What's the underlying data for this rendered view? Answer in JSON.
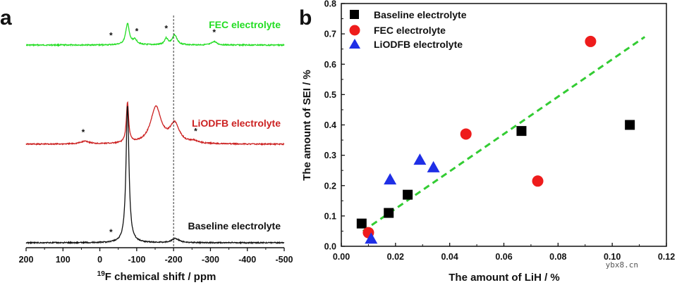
{
  "chart_data": [
    {
      "panel": "a",
      "type": "line",
      "xlabel": "19F chemical shift / ppm",
      "xlabel_sup": "19",
      "xlabel_rest": "F chemical shift / ppm",
      "x_ticks": [
        "200",
        "100",
        "0",
        "-100",
        "-200",
        "-300",
        "-400",
        "-500"
      ],
      "xlim": [
        200,
        -500
      ],
      "reference_line_ppm": -200,
      "series": [
        {
          "name": "FEC electrolyte",
          "color": "#22dd22",
          "peaks": [
            {
              "ppm": -75,
              "height": 30,
              "width": 3
            },
            {
              "ppm": -95,
              "height": 7,
              "width": 4
            },
            {
              "ppm": -180,
              "height": 9,
              "width": 3
            },
            {
              "ppm": -203,
              "height": 14,
              "width": 4
            },
            {
              "ppm": -310,
              "height": 5,
              "width": 4
            }
          ],
          "spinning_sidebands_ppm": [
            -30,
            -100,
            -180,
            -310
          ]
        },
        {
          "name": "LiODFB electrolyte",
          "color": "#cc2222",
          "peaks": [
            {
              "ppm": 40,
              "height": 4,
              "width": 7
            },
            {
              "ppm": -75,
              "height": 57,
              "width": 2
            },
            {
              "ppm": -152,
              "height": 52,
              "width": 9
            },
            {
              "ppm": -203,
              "height": 27,
              "width": 8
            },
            {
              "ppm": -255,
              "height": 3,
              "width": 6
            }
          ],
          "spinning_sidebands_ppm": [
            45,
            -260
          ]
        },
        {
          "name": "Baseline electrolyte",
          "color": "#111111",
          "peaks": [
            {
              "ppm": -75,
              "height": 195,
              "width": 2.5
            },
            {
              "ppm": -205,
              "height": 6,
              "width": 6
            }
          ],
          "spinning_sidebands_ppm": [
            -30
          ]
        }
      ],
      "sideband_marker": "*"
    },
    {
      "panel": "b",
      "type": "scatter",
      "xlabel": "The amount of LiH / %",
      "ylabel": "The amount of SEI / %",
      "xlim": [
        0.0,
        0.12
      ],
      "ylim": [
        0.0,
        0.8
      ],
      "x_ticks": [
        "0.00",
        "0.02",
        "0.04",
        "0.06",
        "0.08",
        "0.10",
        "0.12"
      ],
      "y_ticks": [
        "0.0",
        "0.1",
        "0.2",
        "0.3",
        "0.4",
        "0.5",
        "0.6",
        "0.7",
        "0.8"
      ],
      "legend_position": "top-left",
      "series": [
        {
          "name": "Baseline electrolyte",
          "marker": "square",
          "color": "#000000",
          "points": [
            [
              0.0075,
              0.075
            ],
            [
              0.0175,
              0.11
            ],
            [
              0.0245,
              0.17
            ],
            [
              0.0665,
              0.38
            ],
            [
              0.1065,
              0.4
            ]
          ]
        },
        {
          "name": "FEC electrolyte",
          "marker": "circle",
          "color": "#ee1c1c",
          "points": [
            [
              0.01,
              0.045
            ],
            [
              0.046,
              0.37
            ],
            [
              0.0725,
              0.215
            ],
            [
              0.092,
              0.675
            ]
          ]
        },
        {
          "name": "LiODFB electrolyte",
          "marker": "triangle",
          "color": "#1f2fe6",
          "points": [
            [
              0.011,
              0.025
            ],
            [
              0.018,
              0.22
            ],
            [
              0.029,
              0.285
            ],
            [
              0.034,
              0.26
            ]
          ]
        }
      ],
      "fit_line": {
        "color": "#33cc33",
        "style": "dashed",
        "x": [
          0.008,
          0.112
        ],
        "y": [
          0.05,
          0.69
        ]
      }
    }
  ],
  "watermark": "ybx8.cn"
}
